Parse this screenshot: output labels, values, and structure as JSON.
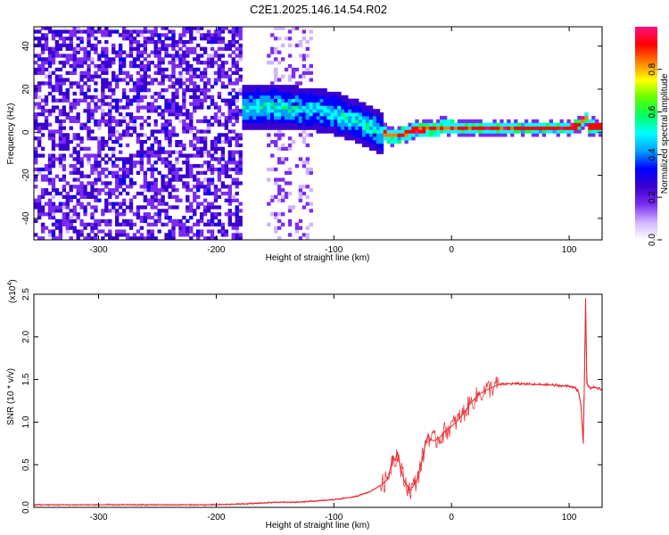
{
  "title": "C2E1.2025.146.14.54.R02",
  "chart_data": [
    {
      "type": "heatmap",
      "title": "C2E1.2025.146.14.54.R02",
      "xlabel": "Height of straight line (km)",
      "ylabel": "Frequency (Hz)",
      "xlim": [
        -355,
        128
      ],
      "ylim": [
        -50,
        49
      ],
      "x_ticks": [
        -300,
        -200,
        -100,
        0,
        100
      ],
      "y_ticks": [
        -40,
        -20,
        0,
        20,
        40
      ],
      "ridge": {
        "x": [
          -180,
          -150,
          -120,
          -100,
          -80,
          -65,
          -55,
          -45,
          -35,
          -20,
          0,
          20,
          50,
          80,
          100,
          108,
          112,
          116,
          128
        ],
        "freq_hz": [
          11,
          11,
          10,
          8,
          4,
          0,
          -2,
          -2,
          0,
          1,
          1.5,
          1.5,
          1.5,
          1.5,
          1.5,
          3,
          7,
          2,
          1.5
        ]
      },
      "colorbar": {
        "label": "Normalized spectral amplitude",
        "range": [
          0,
          1
        ],
        "ticks": [
          0.0,
          0.2,
          0.4,
          0.6,
          0.8
        ],
        "tick_labels": [
          "0.0",
          "0.2",
          "0.4",
          "0.6",
          "0.8"
        ],
        "colors": [
          "#ffffff",
          "#d0b4ff",
          "#7a2cf0",
          "#3a00d0",
          "#0000ff",
          "#00a0ff",
          "#00ffff",
          "#00ff60",
          "#60ff00",
          "#ffff00",
          "#ff8000",
          "#ff0000",
          "#ff1080"
        ]
      },
      "grid": false
    },
    {
      "type": "line",
      "xlabel": "Height of straight line (km)",
      "ylabel": "SNR (10 * v/v)",
      "y_multiplier": "(x10",
      "y_multiplier_exp": "4",
      "xlim": [
        -355,
        128
      ],
      "ylim": [
        0,
        2.5
      ],
      "x_ticks": [
        -300,
        -200,
        -100,
        0,
        100
      ],
      "y_ticks": [
        0.0,
        0.5,
        1.0,
        1.5,
        2.0,
        2.5
      ],
      "y_tick_labels": [
        "0.0",
        "0.5",
        "1.0",
        "1.5",
        "2.0",
        "2.5"
      ],
      "series": [
        {
          "color": "#e8242a",
          "x": [
            -355,
            -300,
            -250,
            -200,
            -180,
            -160,
            -150,
            -140,
            -130,
            -120,
            -110,
            -100,
            -90,
            -80,
            -75,
            -70,
            -65,
            -60,
            -55,
            -52,
            -50,
            -48,
            -46,
            -44,
            -42,
            -40,
            -35,
            -30,
            -25,
            -22,
            -20,
            -18,
            -15,
            -10,
            -5,
            0,
            5,
            10,
            15,
            20,
            25,
            30,
            35,
            40,
            50,
            60,
            70,
            80,
            90,
            100,
            105,
            108,
            110,
            112,
            113,
            114,
            115,
            118,
            122,
            128
          ],
          "values": [
            0.03,
            0.03,
            0.03,
            0.03,
            0.04,
            0.05,
            0.06,
            0.06,
            0.06,
            0.07,
            0.08,
            0.09,
            0.11,
            0.13,
            0.16,
            0.18,
            0.22,
            0.26,
            0.32,
            0.45,
            0.6,
            0.55,
            0.65,
            0.5,
            0.4,
            0.3,
            0.2,
            0.3,
            0.55,
            0.75,
            0.85,
            0.8,
            0.78,
            0.82,
            0.9,
            0.95,
            1.02,
            1.1,
            1.2,
            1.28,
            1.34,
            1.38,
            1.41,
            1.44,
            1.45,
            1.45,
            1.44,
            1.44,
            1.43,
            1.42,
            1.41,
            1.35,
            1.2,
            0.75,
            1.5,
            2.45,
            1.45,
            1.4,
            1.41,
            1.38
          ]
        }
      ],
      "grid": false
    }
  ]
}
